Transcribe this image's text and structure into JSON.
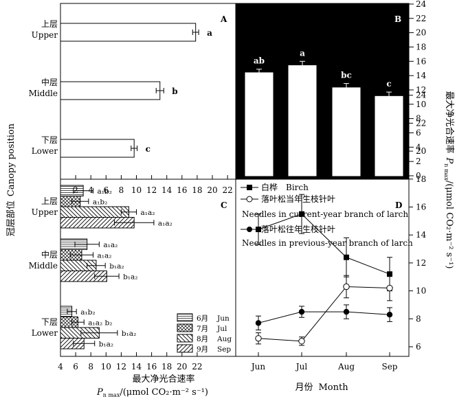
{
  "y_title": {
    "zh": "冠层部位",
    "en": "Canopy position"
  },
  "right_title": {
    "zh": "最大净光合速率",
    "p": "P",
    "sub": "n max",
    "rest": "/(μmol CO₂·m⁻² s⁻¹)"
  },
  "bottom_left_title": {
    "zh": "最大净光合速率",
    "line2": "P",
    "sub": "n max",
    "rest": "/(μmol CO₂·m⁻² s⁻¹)"
  },
  "bottom_right_title": {
    "zh": "月份",
    "en": "Month"
  },
  "chart_data": [
    {
      "panel": "A",
      "type": "bar",
      "orientation": "horizontal",
      "categories": [
        {
          "zh": "上层",
          "en": "Upper"
        },
        {
          "zh": "中层",
          "en": "Middle"
        },
        {
          "zh": "下层",
          "en": "Lower"
        }
      ],
      "values": [
        17.8,
        13.1,
        9.7
      ],
      "errors": [
        0.4,
        0.5,
        0.4
      ],
      "letters": [
        "a",
        "b",
        "c"
      ],
      "xlim": [
        0,
        23
      ],
      "xticks": [
        2,
        4,
        6,
        8,
        10,
        12,
        14,
        16,
        18,
        20,
        22
      ]
    },
    {
      "panel": "B",
      "type": "bar",
      "background": "#000000",
      "bar_color": "#ffffff",
      "categories": [
        "Jun",
        "Jul",
        "Aug",
        "Sep"
      ],
      "values": [
        14.4,
        15.4,
        12.3,
        11.1
      ],
      "errors": [
        0.5,
        0.6,
        0.6,
        0.6
      ],
      "letters": [
        "ab",
        "a",
        "bc",
        "c"
      ],
      "ylim": [
        0,
        24
      ],
      "yticks": [
        0,
        2,
        4,
        6,
        8,
        10,
        12,
        14,
        16,
        18,
        20,
        22,
        24
      ]
    },
    {
      "panel": "C",
      "type": "bar",
      "orientation": "horizontal",
      "grouped": true,
      "categories": [
        {
          "zh": "上层",
          "en": "Upper"
        },
        {
          "zh": "中层",
          "en": "Middle"
        },
        {
          "zh": "下层",
          "en": "Lower"
        }
      ],
      "series": [
        {
          "zh": "6月",
          "en": "Jun",
          "pattern": "hlines",
          "values": [
            7.0,
            7.5,
            5.5
          ],
          "errors": [
            1.3,
            1.6,
            0.6
          ],
          "labels": [
            "a₁b₂",
            "a₁a₂",
            "a₁b₂"
          ]
        },
        {
          "zh": "7月",
          "en": "Jul",
          "pattern": "cross",
          "values": [
            6.6,
            6.8,
            6.3
          ],
          "errors": [
            1.1,
            1.5,
            0.8
          ],
          "labels": [
            "a₁b₂",
            "a₁a₂",
            "a₁a₂ b₂"
          ]
        },
        {
          "zh": "8月",
          "en": "Aug",
          "pattern": "back",
          "values": [
            13.0,
            8.7,
            9.1
          ],
          "errors": [
            1.0,
            1.2,
            2.4
          ],
          "labels": [
            "a₁a₂",
            "b₁a₂",
            "b₁a₂"
          ]
        },
        {
          "zh": "9月",
          "en": "Sep",
          "pattern": "fwd",
          "values": [
            13.7,
            10.1,
            7.1
          ],
          "errors": [
            2.6,
            1.6,
            1.4
          ],
          "labels": [
            "a₁a₂",
            "b₁a₂",
            "b₁a₂"
          ]
        }
      ],
      "xlim": [
        4,
        23
      ],
      "xticks": [
        4,
        6,
        8,
        10,
        12,
        14,
        16,
        18,
        20,
        22
      ]
    },
    {
      "panel": "D",
      "type": "line",
      "categories": [
        "Jun",
        "Jul",
        "Aug",
        "Sep"
      ],
      "series": [
        {
          "zh": "白桦",
          "en": "Birch",
          "marker": "square",
          "values": [
            14.4,
            15.5,
            12.4,
            11.2
          ],
          "errors": [
            1.1,
            1.4,
            1.4,
            1.2
          ]
        },
        {
          "zh": "落叶松当年生枝针叶",
          "en": "Needles in current-year branch of larch",
          "marker": "open-circle",
          "values": [
            6.6,
            6.4,
            10.3,
            10.2
          ],
          "errors": [
            0.4,
            0.3,
            0.8,
            0.9
          ]
        },
        {
          "zh": "落叶松往年生枝针叶",
          "en": "Needles in previous-year branch of larch",
          "marker": "filled-circle",
          "values": [
            7.7,
            8.5,
            8.5,
            8.3
          ],
          "errors": [
            0.5,
            0.4,
            0.5,
            0.5
          ]
        }
      ],
      "ylim": [
        5,
        24
      ],
      "yticks": [
        6,
        8,
        10,
        12,
        14,
        16,
        18,
        20,
        22,
        24
      ]
    }
  ]
}
